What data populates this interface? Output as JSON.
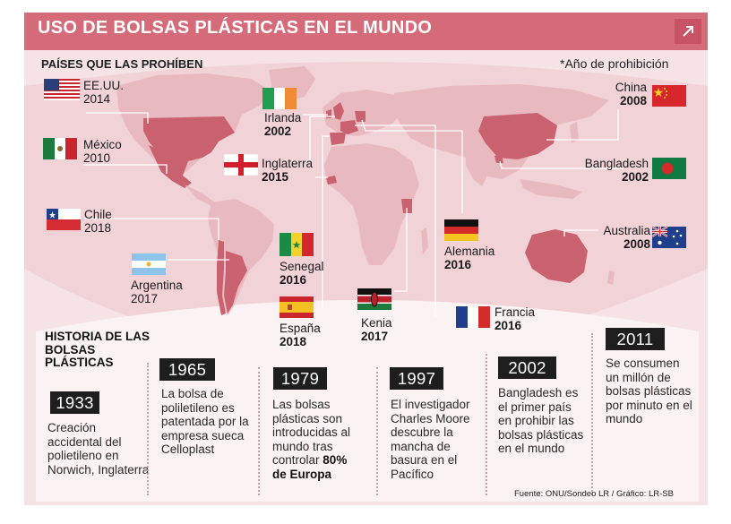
{
  "title": "USO DE BOLSAS PLÁSTICAS EN EL MUNDO",
  "share_icon": "arrow-up-right-icon",
  "subtitle": "PAÍSES QUE LAS PROHÍBEN",
  "year_note": "*Año de prohibición",
  "countries": {
    "usa": {
      "name": "EE.UU.",
      "year": "2014"
    },
    "ireland": {
      "name": "Irlanda",
      "year": "2002"
    },
    "mexico": {
      "name": "México",
      "year": "2010"
    },
    "england": {
      "name": "Inglaterra",
      "year": "2015"
    },
    "chile": {
      "name": "Chile",
      "year": "2018"
    },
    "argentina": {
      "name": "Argentina",
      "year": "2017"
    },
    "senegal": {
      "name": "Senegal",
      "year": "2016"
    },
    "spain": {
      "name": "España",
      "year": "2018"
    },
    "kenya": {
      "name": "Kenia",
      "year": "2017"
    },
    "germany": {
      "name": "Alemania",
      "year": "2016"
    },
    "france": {
      "name": "Francia",
      "year": "2016"
    },
    "china": {
      "name": "China",
      "year": "2008"
    },
    "bangladesh": {
      "name": "Bangladesh",
      "year": "2002"
    },
    "australia": {
      "name": "Australia",
      "year": "2008"
    }
  },
  "history": {
    "title": "HISTORIA DE LAS BOLSAS PLÁSTICAS",
    "events": [
      {
        "year": "1933",
        "text": "Creación accidental del polietileno en Norwich, Inglaterra"
      },
      {
        "year": "1965",
        "text": "La bolsa de poliletileno es patentada por la empresa sueca Celloplast"
      },
      {
        "year": "1979",
        "text": "Las bolsas plásticas son introducidas al mundo tras controlar",
        "highlight": "80% de Europa"
      },
      {
        "year": "1997",
        "text": "El investigador Charles Moore descubre la mancha de basura en el Pacífico"
      },
      {
        "year": "2002",
        "text": "Bangladesh es el primer país en prohibir las bolsas plásticas en el mundo"
      },
      {
        "year": "2011",
        "text": "Se consumen un millón de bolsas plásticas por minuto en el mundo"
      }
    ]
  },
  "source": "Fuente: ONU/Sondeo LR / Gráfico: LR-SB",
  "colors": {
    "header": "#d56a79",
    "panel_bg": "#f6e3e6",
    "land": "#e9b9c0",
    "highlight_land": "#c9616f",
    "year_badge": "#1e1e1e"
  }
}
